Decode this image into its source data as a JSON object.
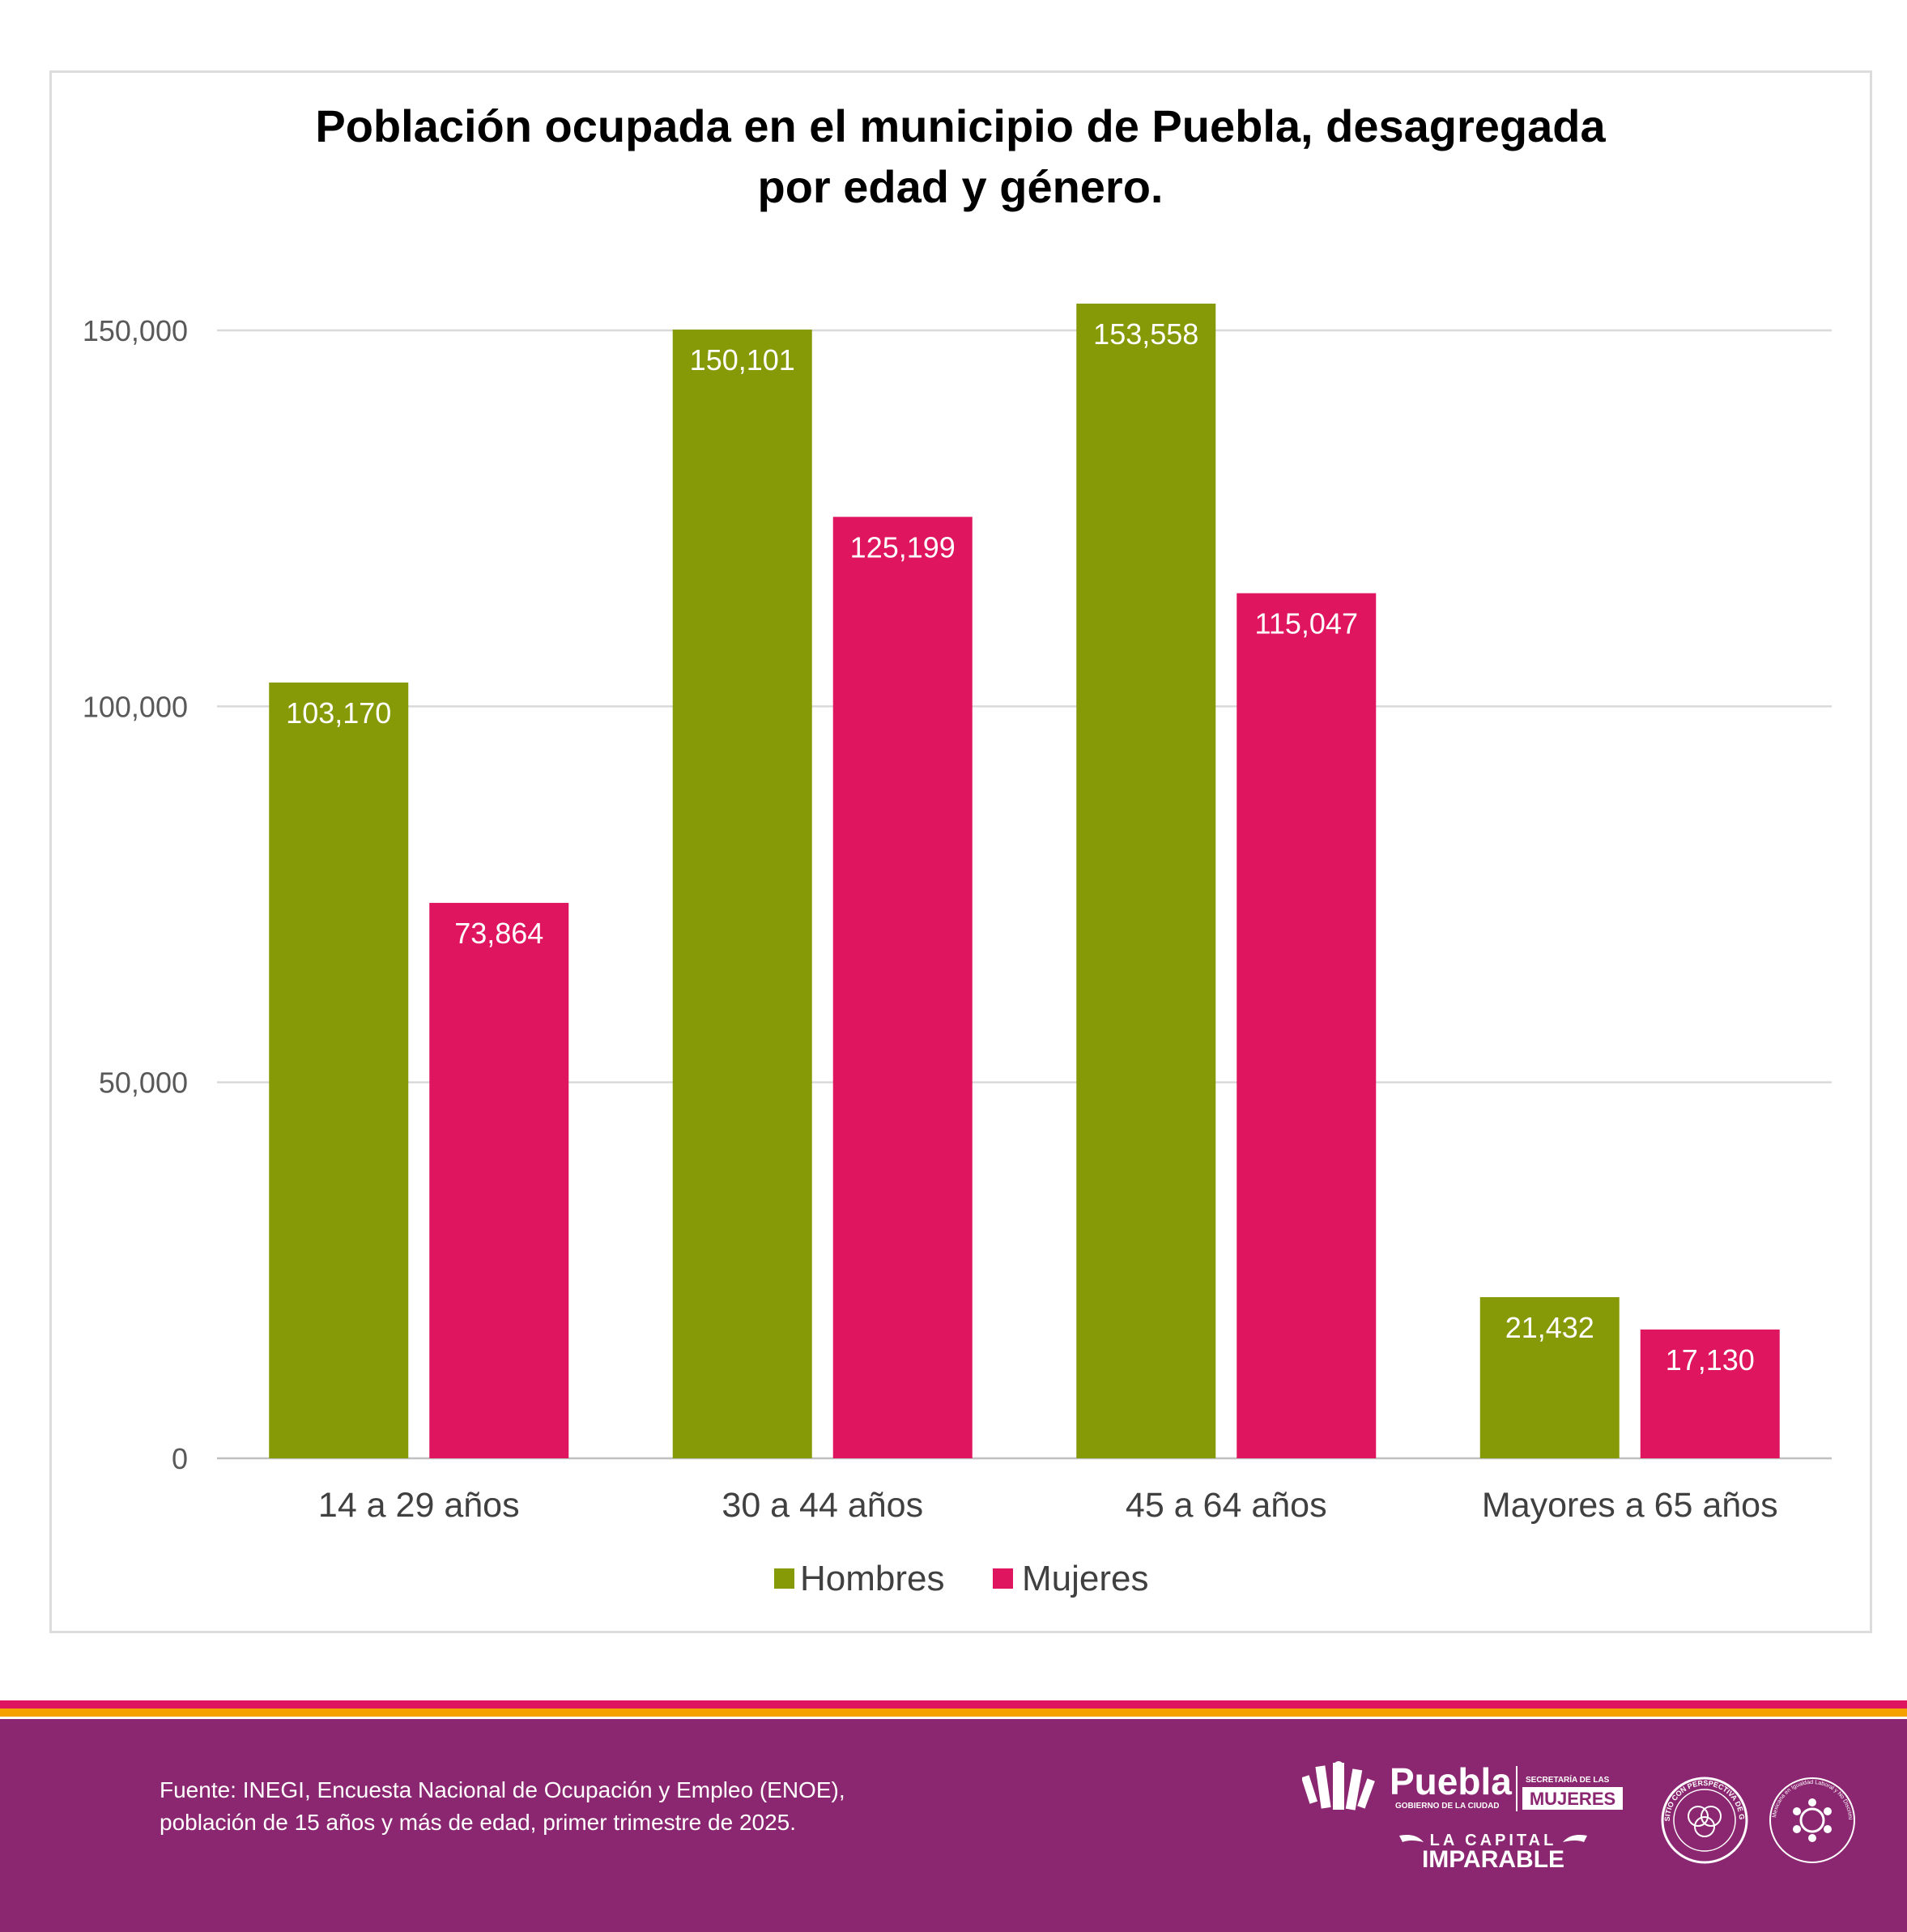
{
  "colors": {
    "hombres": "#869A07",
    "mujeres": "#E0155F",
    "footer_bg": "#8B2771",
    "stripe_red": "#E0155F",
    "stripe_orange": "#F5A100",
    "gridline": "#D9D9D9"
  },
  "chart_data": {
    "type": "bar",
    "title": [
      "Población ocupada en el municipio de Puebla, desagregada",
      "por edad y género."
    ],
    "categories": [
      "14 a 29 años",
      "30 a 44 años",
      "45 a 64 años",
      "Mayores a 65 años"
    ],
    "series": [
      {
        "name": "Hombres",
        "values": [
          103170,
          150101,
          153558,
          21432
        ]
      },
      {
        "name": "Mujeres",
        "values": [
          73864,
          125199,
          115047,
          17130
        ]
      }
    ],
    "data_labels": [
      [
        "103,170",
        "150,101",
        "153,558",
        "21,432"
      ],
      [
        "73,864",
        "125,199",
        "115,047",
        "17,130"
      ]
    ],
    "ylim": [
      0,
      150000
    ],
    "yticks": [
      0,
      50000,
      100000,
      150000
    ],
    "ytick_labels": [
      "0",
      "50,000",
      "100,000",
      "150,000"
    ],
    "grid": true,
    "legend_position": "bottom",
    "xlabel": "",
    "ylabel": ""
  },
  "footer": {
    "source_lines": [
      "Fuente:  INEGI, Encuesta Nacional de Ocupación y Empleo (ENOE),",
      "población de 15 años y más de edad, primer trimestre de 2025."
    ],
    "logo_puebla": {
      "name": "Puebla",
      "sub": "GOBIERNO DE LA CIUDAD",
      "secretaria": "SECRETARÍA DE LAS",
      "mujeres": "MUJERES",
      "capital": "LA CAPITAL",
      "imparable": "IMPARABLE"
    },
    "logo_micrositio": "MICROSITIO CON PERSPECTIVA DE GÉNERO",
    "logo_norma": "Norma Mexicana en Igualdad Laboral y No Discriminación"
  }
}
